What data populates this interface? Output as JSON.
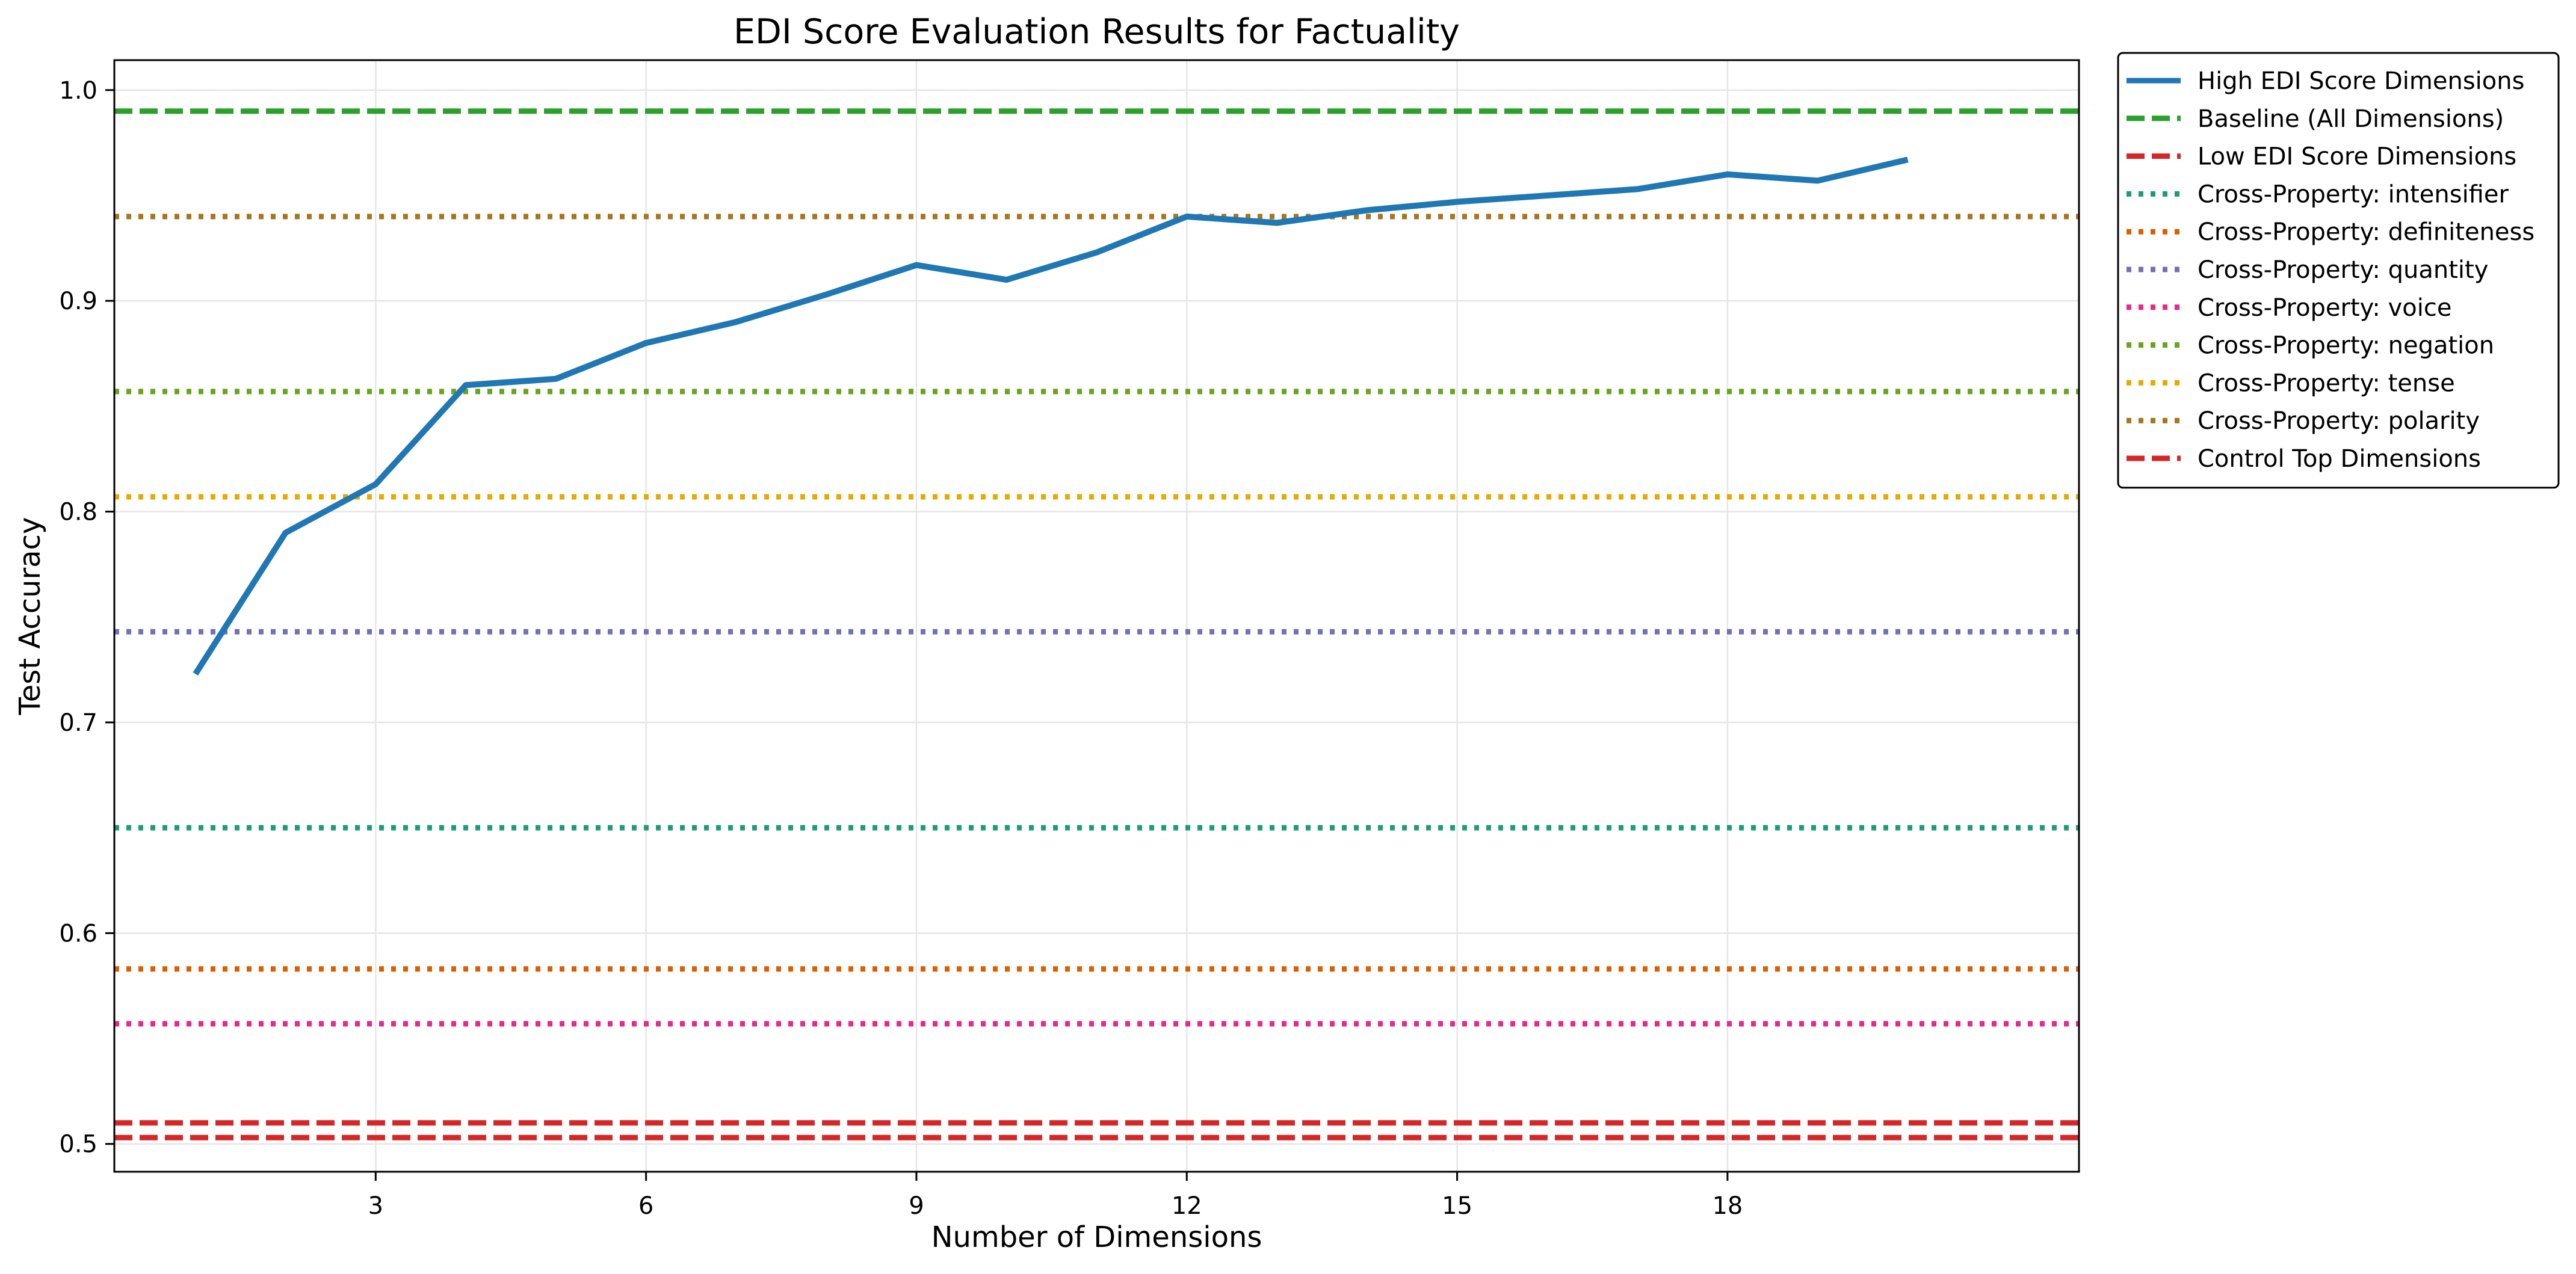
{
  "chart_data": {
    "type": "line",
    "title": "EDI Score Evaluation Results for Factuality",
    "xlabel": "Number of Dimensions",
    "ylabel": "Test Accuracy",
    "xlim": [
      0.1,
      21.9
    ],
    "ylim": [
      0.4868,
      1.0142
    ],
    "xticks": [
      3,
      6,
      9,
      12,
      15,
      18
    ],
    "yticks": [
      0.5,
      0.6,
      0.7,
      0.8,
      0.9,
      1.0
    ],
    "xtick_labels": [
      "3",
      "6",
      "9",
      "12",
      "15",
      "18"
    ],
    "ytick_labels": [
      "0.5",
      "0.6",
      "0.7",
      "0.8",
      "0.9",
      "1.0"
    ],
    "grid": true,
    "legend_position": "outside-right-top",
    "series": [
      {
        "name": "High EDI Score Dimensions",
        "style": "solid",
        "color": "#1f77b4",
        "x": [
          1,
          2,
          3,
          4,
          5,
          6,
          7,
          8,
          9,
          10,
          11,
          12,
          13,
          14,
          15,
          16,
          17,
          18,
          19,
          20
        ],
        "y": [
          0.723,
          0.79,
          0.813,
          0.86,
          0.863,
          0.88,
          0.89,
          0.903,
          0.917,
          0.91,
          0.923,
          0.94,
          0.937,
          0.943,
          0.947,
          0.95,
          0.953,
          0.96,
          0.957,
          0.967
        ]
      },
      {
        "name": "Baseline (All Dimensions)",
        "style": "dashed",
        "color": "#2ca02c",
        "value": 0.99
      },
      {
        "name": "Low EDI Score Dimensions",
        "style": "dashed",
        "color": "#d62728",
        "value": 0.51
      },
      {
        "name": "Cross-Property: intensifier",
        "style": "dotted",
        "color": "#1b9e77",
        "value": 0.65
      },
      {
        "name": "Cross-Property: definiteness",
        "style": "dotted",
        "color": "#d95f02",
        "value": 0.583
      },
      {
        "name": "Cross-Property: quantity",
        "style": "dotted",
        "color": "#7570b3",
        "value": 0.743
      },
      {
        "name": "Cross-Property: voice",
        "style": "dotted",
        "color": "#e7298a",
        "value": 0.557
      },
      {
        "name": "Cross-Property: negation",
        "style": "dotted",
        "color": "#66a61e",
        "value": 0.857
      },
      {
        "name": "Cross-Property: tense",
        "style": "dotted",
        "color": "#e6ab02",
        "value": 0.807
      },
      {
        "name": "Cross-Property: polarity",
        "style": "dotted",
        "color": "#a6761d",
        "value": 0.94
      },
      {
        "name": "Control Top Dimensions",
        "style": "dashed",
        "color": "#d62728",
        "value": 0.503
      }
    ]
  }
}
